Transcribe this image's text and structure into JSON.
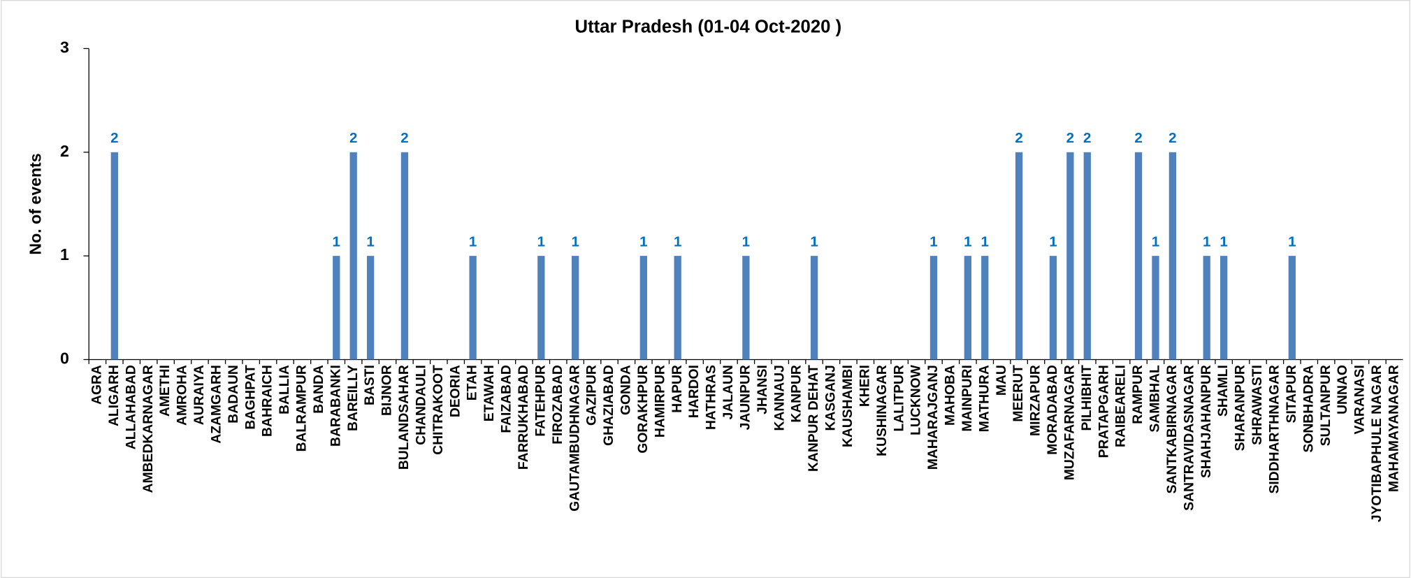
{
  "chart_data": {
    "type": "bar",
    "title": "Uttar Pradesh  (01-04 Oct-2020 )",
    "y_label": "No. of events",
    "categories": [
      "AGRA",
      "ALIGARH",
      "ALLAHABAD",
      "AMBEDKARNAGAR",
      "AMETHI",
      "AMROHA",
      "AURAIYA",
      "AZAMGARH",
      "BADAUN",
      "BAGHPAT",
      "BAHRAICH",
      "BALLIA",
      "BALRAMPUR",
      "BANDA",
      "BARABANKI",
      "BAREILLY",
      "BASTI",
      "BIJNOR",
      "BULANDSAHAR",
      "CHANDAULI",
      "CHITRAKOOT",
      "DEORIA",
      "ETAH",
      "ETAWAH",
      "FAIZABAD",
      "FARRUKHABAD",
      "FATEHPUR",
      "FIROZABAD",
      "GAUTAMBUDHNAGAR",
      "GAZIPUR",
      "GHAZIABAD",
      "GONDA",
      "GORAKHPUR",
      "HAMIRPUR",
      "HAPUR",
      "HARDOI",
      "HATHRAS",
      "JALAUN",
      "JAUNPUR",
      "JHANSI",
      "KANNAUJ",
      "KANPUR",
      "KANPUR DEHAT",
      "KASGANJ",
      "KAUSHAMBI",
      "KHERI",
      "KUSHINAGAR",
      "LALITPUR",
      "LUCKNOW",
      "MAHARAJGANJ",
      "MAHOBA",
      "MAINPURI",
      "MATHURA",
      "MAU",
      "MEERUT",
      "MIRZAPUR",
      "MORADABAD",
      "MUZAFARNAGAR",
      "PILHIBHIT",
      "PRATAPGARH",
      "RAIBEARELI",
      "RAMPUR",
      "SAMBHAL",
      "SANTKABIRNAGAR",
      "SANTRAVIDASNAGAR",
      "SHAHJAHANPUR",
      "SHAMLI",
      "SHARANPUR",
      "SHRAWASTI",
      "SIDDHARTHNAGAR",
      "SITAPUR",
      "SONBHADRA",
      "SULTANPUR",
      "UNNAO",
      "VARANASI",
      "JYOTIBAPHULE NAGAR",
      "MAHAMAYANAGAR"
    ],
    "values": [
      0,
      2,
      0,
      0,
      0,
      0,
      0,
      0,
      0,
      0,
      0,
      0,
      0,
      0,
      1,
      2,
      1,
      0,
      2,
      0,
      0,
      0,
      1,
      0,
      0,
      0,
      1,
      0,
      1,
      0,
      0,
      0,
      1,
      0,
      1,
      0,
      0,
      0,
      1,
      0,
      0,
      0,
      1,
      0,
      0,
      0,
      0,
      0,
      0,
      1,
      0,
      1,
      1,
      0,
      2,
      0,
      1,
      2,
      2,
      0,
      0,
      2,
      1,
      2,
      0,
      1,
      1,
      0,
      0,
      0,
      1,
      0,
      0,
      0,
      0,
      0,
      0
    ],
    "color": "#4f81bd",
    "label_color": "#0070c0",
    "ylim": [
      0,
      3
    ],
    "yticks": [
      0,
      1,
      2,
      3
    ],
    "grid": false
  }
}
